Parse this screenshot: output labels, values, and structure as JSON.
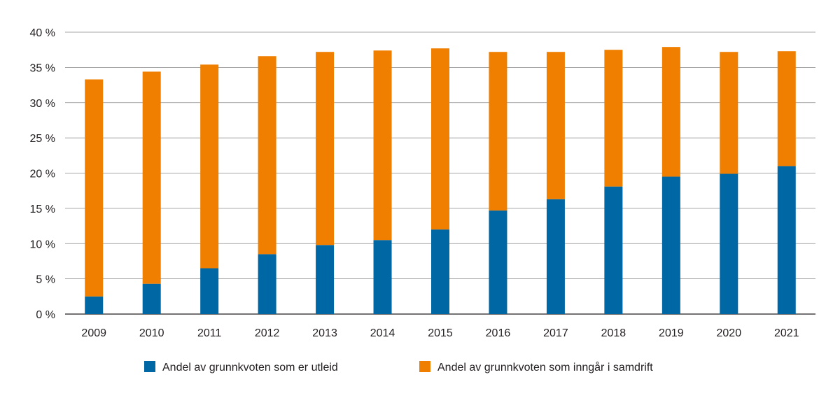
{
  "chart_data": {
    "type": "bar",
    "stacked": true,
    "categories": [
      "2009",
      "2010",
      "2011",
      "2012",
      "2013",
      "2014",
      "2015",
      "2016",
      "2017",
      "2018",
      "2019",
      "2020",
      "2021"
    ],
    "series": [
      {
        "name": "Andel av grunnkvoten som er utleid",
        "color": "#0067a5",
        "values": [
          2.5,
          4.3,
          6.5,
          8.5,
          9.8,
          10.5,
          12.0,
          14.7,
          16.3,
          18.1,
          19.5,
          19.9,
          21.0
        ]
      },
      {
        "name": "Andel av grunnkvoten som inngår i samdrift",
        "color": "#f07f00",
        "values": [
          30.8,
          30.1,
          28.9,
          28.1,
          27.4,
          26.9,
          25.7,
          22.5,
          20.9,
          19.4,
          18.4,
          17.3,
          16.3
        ]
      }
    ],
    "ylim": [
      0,
      40
    ],
    "yticks": [
      0,
      5,
      10,
      15,
      20,
      25,
      30,
      35,
      40
    ],
    "ytick_labels": [
      "0 %",
      "5 %",
      "10 %",
      "15 %",
      "20 %",
      "25 %",
      "30 %",
      "35 %",
      "40 %"
    ],
    "grid": true,
    "legend": "bottom",
    "title": "",
    "xlabel": "",
    "ylabel": ""
  }
}
